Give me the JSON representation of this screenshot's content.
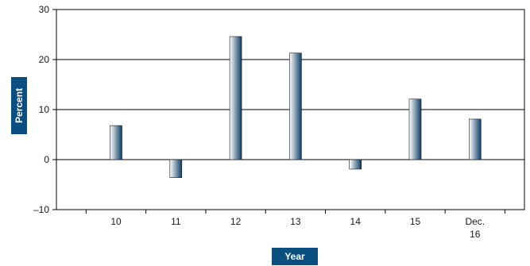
{
  "chart_data": {
    "type": "bar",
    "categories": [
      [
        "10"
      ],
      [
        "11"
      ],
      [
        "12"
      ],
      [
        "13"
      ],
      [
        "14"
      ],
      [
        "15"
      ],
      [
        "Dec.",
        "16"
      ]
    ],
    "values": [
      6.8,
      -3.6,
      24.6,
      21.3,
      -1.9,
      12.1,
      8.1
    ],
    "title": "",
    "xlabel": "Year",
    "ylabel": "Percent",
    "ylim": [
      -10,
      30
    ],
    "yticks": [
      -10,
      0,
      10,
      20,
      30
    ],
    "ytick_labels": [
      "–10",
      "0",
      "10",
      "20",
      "30"
    ],
    "grid": true,
    "colors": {
      "bar_dark": "#0d3d66",
      "bar_light": "#ffffff",
      "label_box": "#0b4f80",
      "grid": "#000000"
    }
  }
}
